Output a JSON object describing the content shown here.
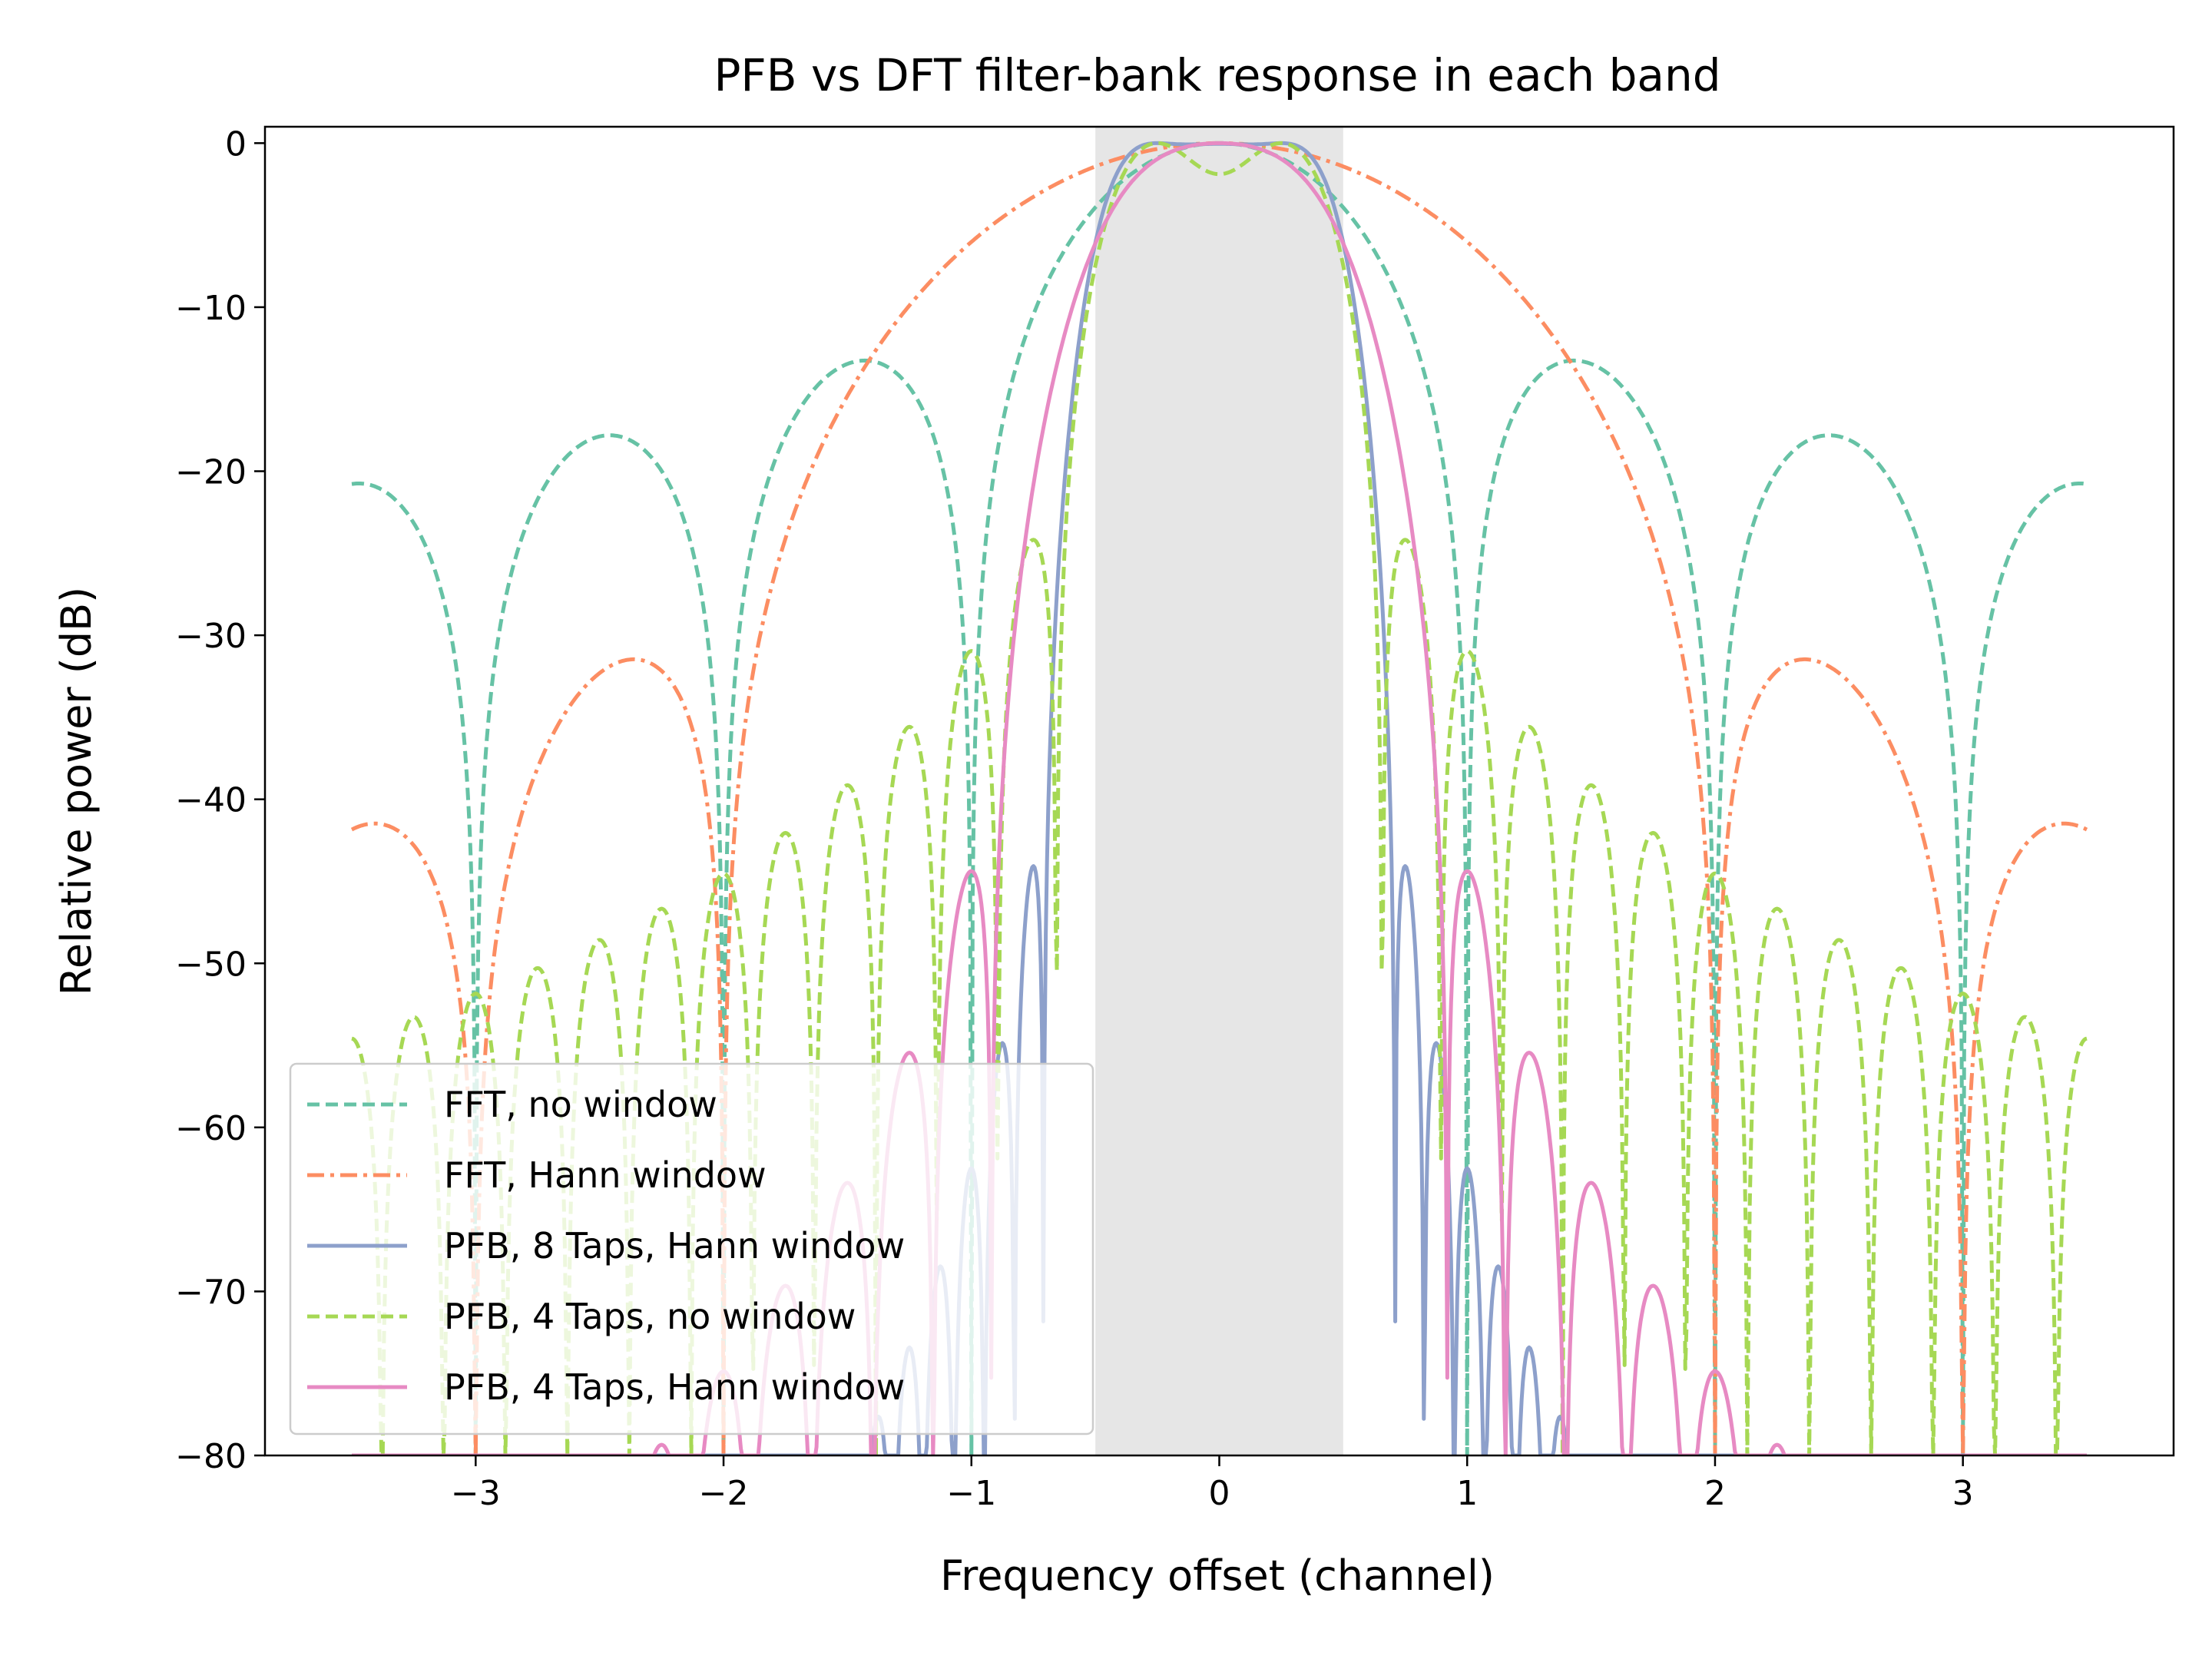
{
  "chart_data": {
    "type": "line",
    "title": "PFB vs DFT filter-bank response in each band",
    "xlabel": "Frequency offset (channel)",
    "ylabel": "Relative power (dB)",
    "xlim": [
      -3.85,
      3.85
    ],
    "ylim": [
      -80,
      1
    ],
    "x_ticks": [
      -3,
      -2,
      -1,
      0,
      1,
      2,
      3
    ],
    "x_tick_labels": [
      "−3",
      "−2",
      "−1",
      "0",
      "1",
      "2",
      "3"
    ],
    "y_ticks": [
      0,
      -10,
      -20,
      -30,
      -40,
      -50,
      -60,
      -70,
      -80
    ],
    "y_tick_labels": [
      "0",
      "−10",
      "−20",
      "−30",
      "−40",
      "−50",
      "−60",
      "−70",
      "−80"
    ],
    "shaded_band": {
      "x0": -0.5,
      "x1": 0.5,
      "color": "#e6e6e6"
    },
    "grid": false,
    "legend_position": "lower-left",
    "x_range_of_series": [
      -3.5,
      3.5
    ],
    "series": [
      {
        "name": "FFT, no window",
        "color": "#66c2a5",
        "style": "dashed",
        "model": "fft",
        "window": "none",
        "taps": 1
      },
      {
        "name": "FFT, Hann window",
        "color": "#fc8d62",
        "style": "dashdot",
        "model": "fft",
        "window": "hann",
        "taps": 1
      },
      {
        "name": "PFB, 8 Taps, Hann window",
        "color": "#8da0cb",
        "style": "solid",
        "model": "pfb",
        "window": "hann",
        "taps": 8
      },
      {
        "name": "PFB, 4 Taps, no window",
        "color": "#a6d854",
        "style": "dashed",
        "model": "pfb",
        "window": "none",
        "taps": 4
      },
      {
        "name": "PFB, 4 Taps, Hann window",
        "color": "#e78ac3",
        "style": "solid",
        "model": "pfb",
        "window": "hann",
        "taps": 4
      }
    ]
  }
}
